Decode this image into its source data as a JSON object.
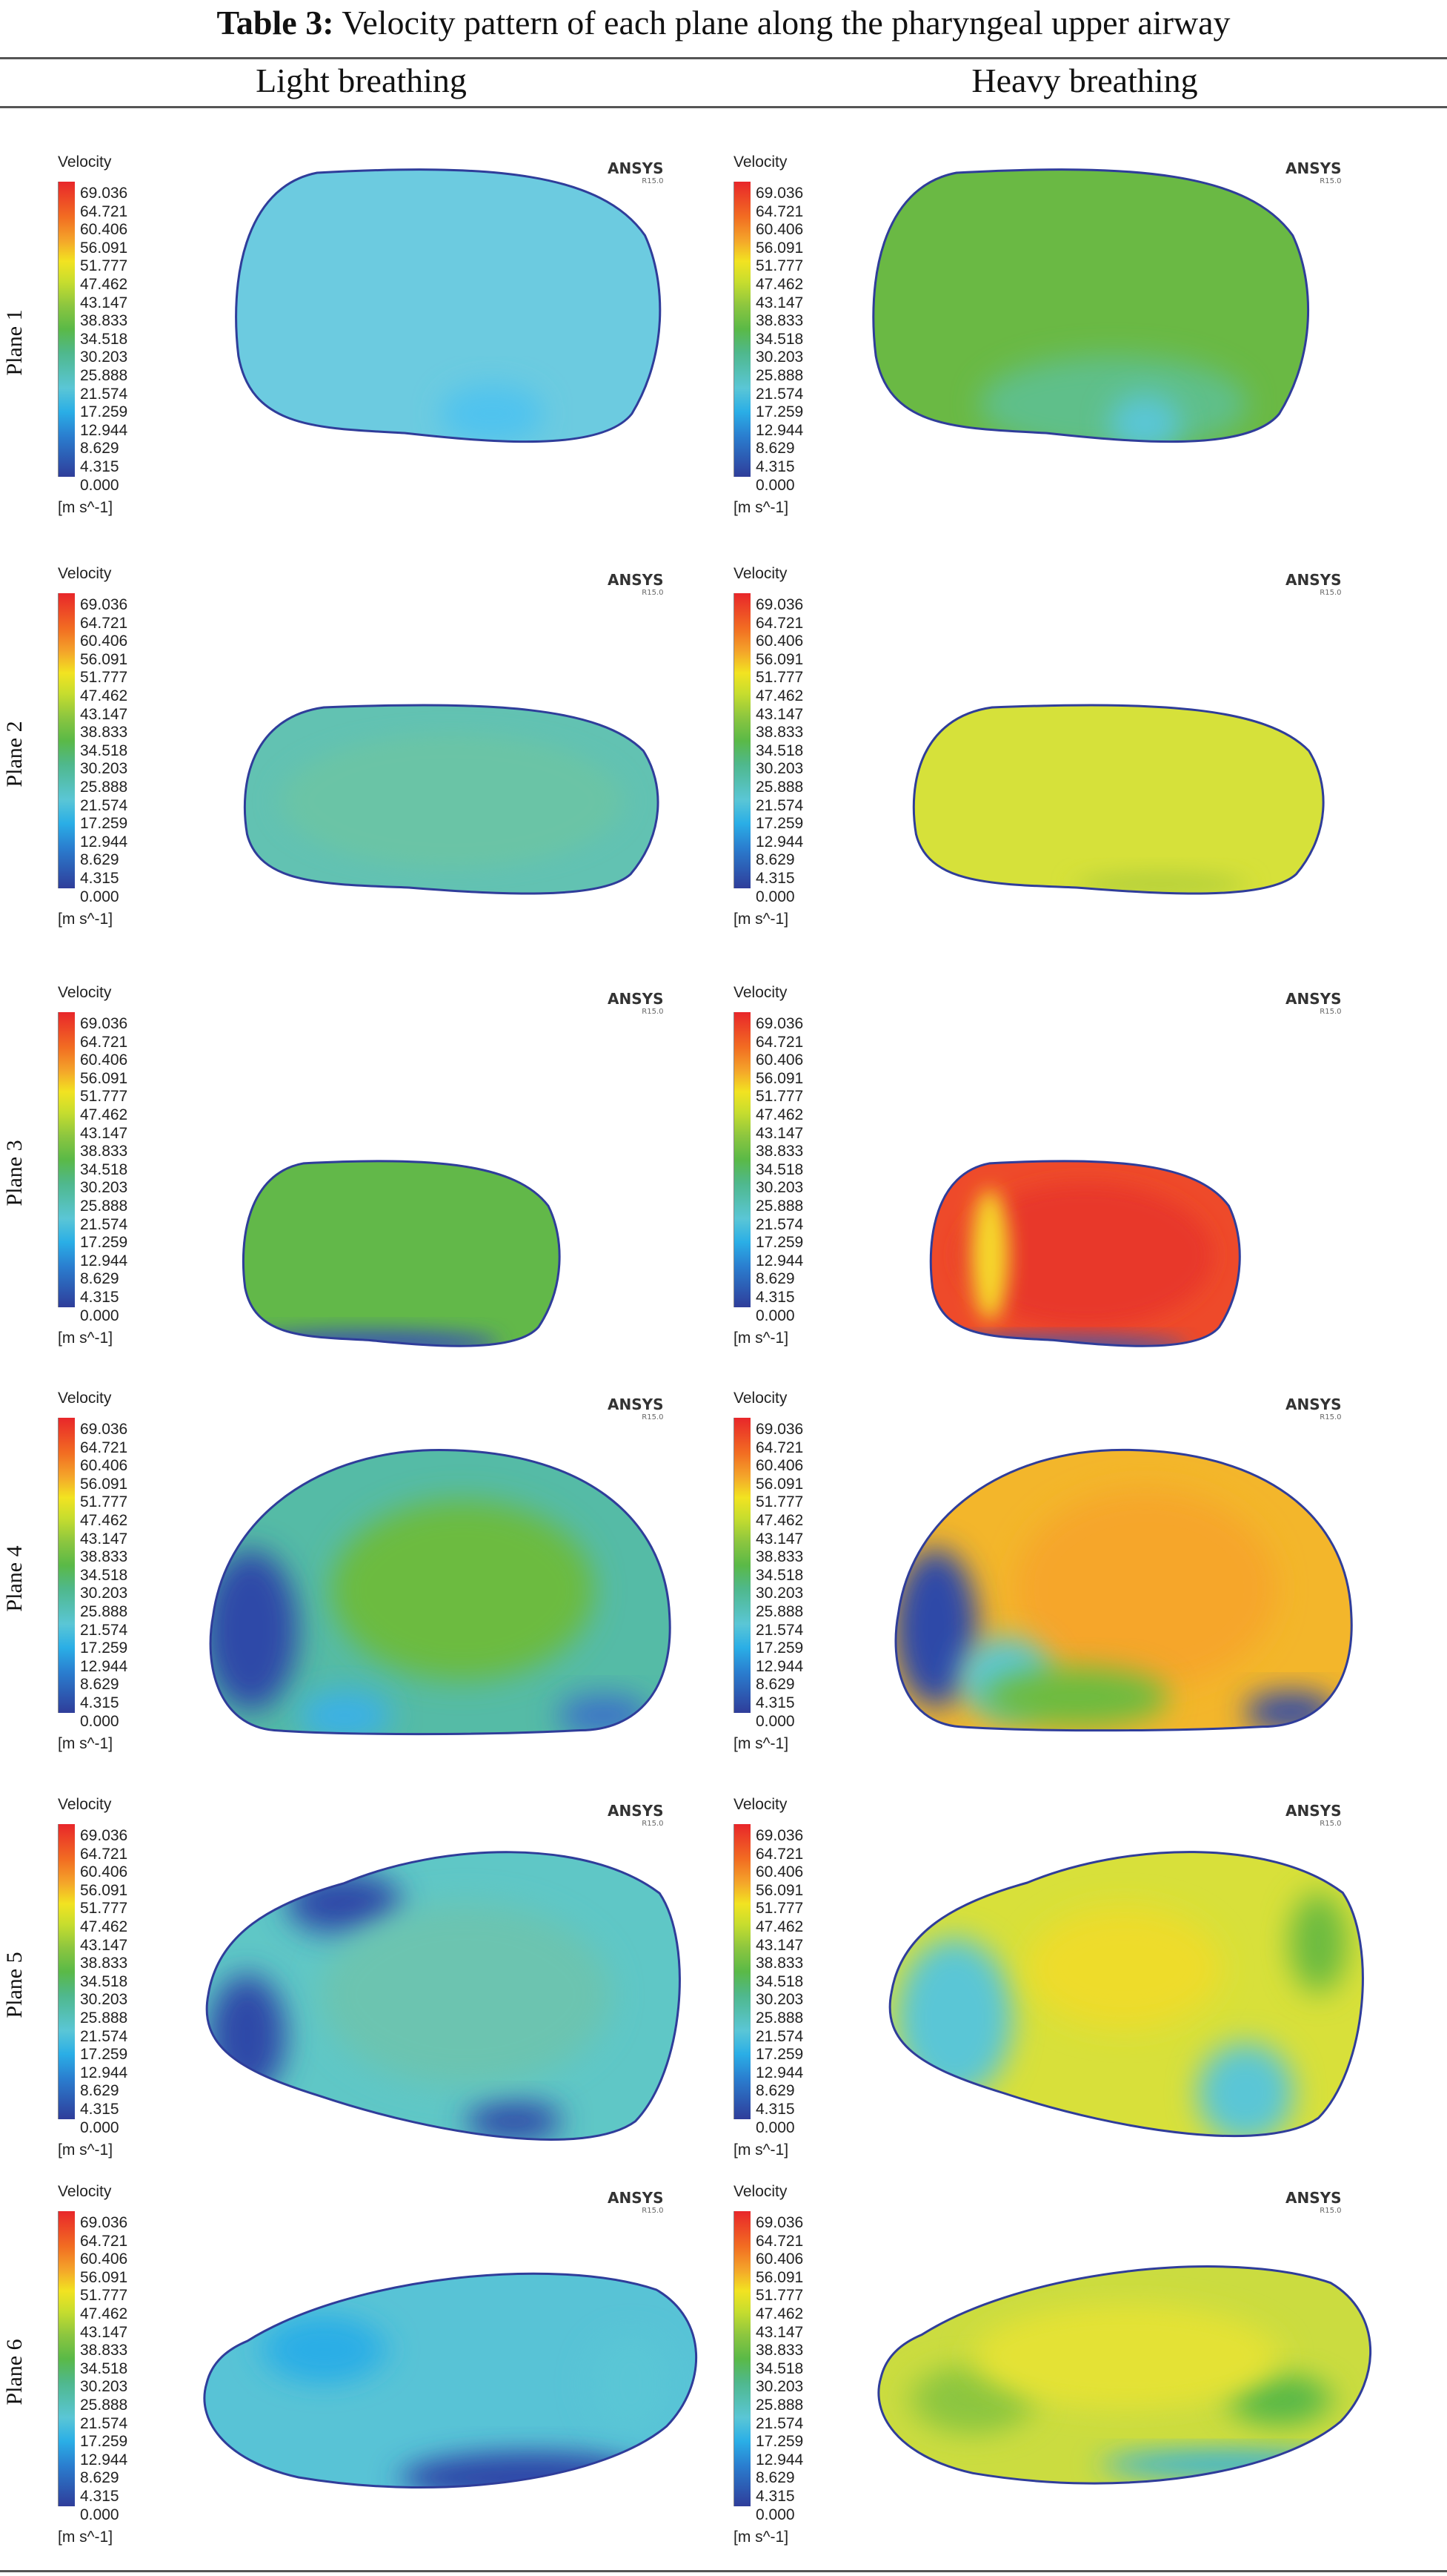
{
  "table": {
    "caption_label": "Table 3:",
    "caption_text": "Velocity pattern of each plane along the pharyngeal upper airway",
    "columns": [
      "Light breathing",
      "Heavy breathing"
    ]
  },
  "legend": {
    "title": "Velocity",
    "ticks": [
      "69.036",
      "64.721",
      "60.406",
      "56.091",
      "51.777",
      "47.462",
      "43.147",
      "38.833",
      "34.518",
      "30.203",
      "25.888",
      "21.574",
      "17.259",
      "12.944",
      "8.629",
      "4.315",
      "0.000"
    ],
    "units": "[m s^-1]",
    "logo": "ANSYS",
    "logo_version": "R15.0"
  },
  "rows": [
    {
      "label": "Plane 1",
      "light_color": "#6ccbe0",
      "heavy_color": "#6ab944"
    },
    {
      "label": "Plane 2",
      "light_color": "#62c2b2",
      "heavy_color": "#d6e13a"
    },
    {
      "label": "Plane 3",
      "light_color": "#62b849",
      "heavy_color": "#ee4a2a"
    },
    {
      "label": "Plane 4",
      "light_color": "#55bba6",
      "heavy_color": "#f3b62b"
    },
    {
      "label": "Plane 5",
      "light_color": "#5fc7c6",
      "heavy_color": "#d8e03a"
    },
    {
      "label": "Plane 6",
      "light_color": "#58c3d6",
      "heavy_color": "#cbdc40"
    }
  ]
}
